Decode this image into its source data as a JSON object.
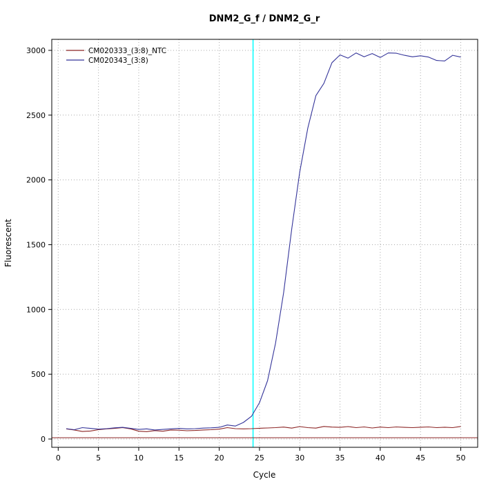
{
  "chart_data": {
    "type": "line",
    "title": "DNM2_G_f / DNM2_G_r",
    "xlabel": "Cycle",
    "ylabel": "Fluorescent",
    "xlim": [
      -0.8,
      52.1
    ],
    "ylim": [
      -64,
      3085
    ],
    "xticks": [
      0,
      5,
      10,
      15,
      20,
      25,
      30,
      35,
      40,
      45,
      50
    ],
    "yticks": [
      0,
      500,
      1000,
      1500,
      2000,
      2500,
      3000
    ],
    "grid": "dotted",
    "legend_position": "top-left",
    "threshold_line_y": 10,
    "threshold_cycle_x": 24.2,
    "colors": {
      "threshold_line": "#8B2323",
      "threshold_cycle_line": "#00FFFF",
      "grid": "#A9A9A9",
      "axis": "#000000"
    },
    "x": [
      1,
      2,
      3,
      4,
      5,
      6,
      7,
      8,
      9,
      10,
      11,
      12,
      13,
      14,
      15,
      16,
      17,
      18,
      19,
      20,
      21,
      22,
      23,
      24,
      25,
      26,
      27,
      28,
      29,
      30,
      31,
      32,
      33,
      34,
      35,
      36,
      37,
      38,
      39,
      40,
      41,
      42,
      43,
      44,
      45,
      46,
      47,
      48,
      49,
      50
    ],
    "series": [
      {
        "name": "CM020333_(3:8)_NTC",
        "color": "#8B2323",
        "values": [
          78,
          70,
          58,
          62,
          72,
          78,
          82,
          88,
          78,
          60,
          57,
          65,
          60,
          70,
          68,
          64,
          66,
          70,
          72,
          76,
          88,
          80,
          78,
          80,
          83,
          85,
          88,
          92,
          84,
          96,
          88,
          84,
          97,
          92,
          90,
          96,
          88,
          93,
          85,
          92,
          88,
          93,
          90,
          88,
          91,
          93,
          88,
          91,
          88,
          97
        ]
      },
      {
        "name": "CM020343_(3:8)",
        "color": "#333399",
        "values": [
          80,
          72,
          88,
          82,
          76,
          80,
          86,
          90,
          82,
          74,
          78,
          70,
          74,
          78,
          82,
          78,
          80,
          84,
          86,
          90,
          108,
          100,
          128,
          175,
          280,
          450,
          740,
          1130,
          1620,
          2060,
          2400,
          2650,
          2745,
          2905,
          2965,
          2940,
          2980,
          2950,
          2975,
          2945,
          2980,
          2978,
          2962,
          2950,
          2958,
          2948,
          2922,
          2918,
          2962,
          2948
        ]
      }
    ]
  }
}
